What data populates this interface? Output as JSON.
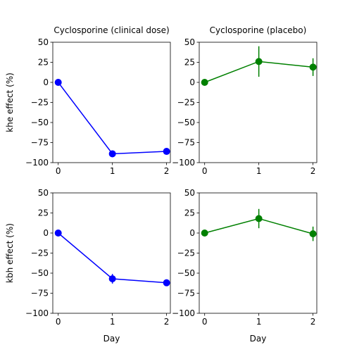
{
  "chart_data": [
    {
      "type": "line",
      "title": "Cyclosporine (clinical dose)",
      "xlabel": "",
      "ylabel": "khe effect (%)",
      "x": [
        0,
        1,
        2
      ],
      "xlim": [
        -0.1,
        2.07
      ],
      "ylim": [
        -100,
        50
      ],
      "xticks": [
        0,
        1,
        2
      ],
      "yticks": [
        -100,
        -75,
        -50,
        -25,
        0,
        25,
        50
      ],
      "grid": false,
      "color": "#0000ff",
      "series": [
        {
          "values": [
            0,
            -89,
            -86
          ],
          "errors": [
            0,
            0,
            0
          ]
        }
      ]
    },
    {
      "type": "line",
      "title": "Cyclosporine (placebo)",
      "xlabel": "",
      "ylabel": "",
      "x": [
        0,
        1,
        2
      ],
      "xlim": [
        -0.1,
        2.07
      ],
      "ylim": [
        -100,
        50
      ],
      "xticks": [
        0,
        1,
        2
      ],
      "yticks": [
        -100,
        -75,
        -50,
        -25,
        0,
        25,
        50
      ],
      "grid": false,
      "color": "#008000",
      "series": [
        {
          "values": [
            0,
            26,
            19
          ],
          "errors": [
            0,
            19,
            11
          ]
        }
      ]
    },
    {
      "type": "line",
      "title": "",
      "xlabel": "Day",
      "ylabel": "kbh effect (%)",
      "x": [
        0,
        1,
        2
      ],
      "xlim": [
        -0.1,
        2.07
      ],
      "ylim": [
        -100,
        50
      ],
      "xticks": [
        0,
        1,
        2
      ],
      "yticks": [
        -100,
        -75,
        -50,
        -25,
        0,
        25,
        50
      ],
      "grid": false,
      "color": "#0000ff",
      "series": [
        {
          "values": [
            0,
            -57,
            -62
          ],
          "errors": [
            0,
            6,
            0
          ]
        }
      ]
    },
    {
      "type": "line",
      "title": "",
      "xlabel": "Day",
      "ylabel": "",
      "x": [
        0,
        1,
        2
      ],
      "xlim": [
        -0.1,
        2.07
      ],
      "ylim": [
        -100,
        50
      ],
      "xticks": [
        0,
        1,
        2
      ],
      "yticks": [
        -100,
        -75,
        -50,
        -25,
        0,
        25,
        50
      ],
      "grid": false,
      "color": "#008000",
      "series": [
        {
          "values": [
            0,
            18,
            -1
          ],
          "errors": [
            0,
            12,
            9
          ]
        }
      ]
    }
  ]
}
